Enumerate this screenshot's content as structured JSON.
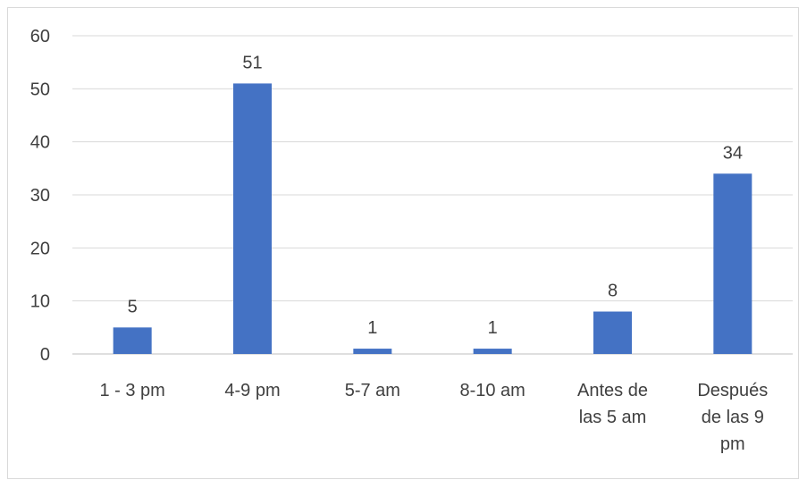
{
  "chart_data": {
    "type": "bar",
    "title": "",
    "xlabel": "",
    "ylabel": "",
    "ylim": [
      0,
      60
    ],
    "yticks": [
      0,
      10,
      20,
      30,
      40,
      50,
      60
    ],
    "grid": true,
    "legend": "none",
    "bar_color": "#4472C4",
    "categories": [
      [
        "1 - 3 pm"
      ],
      [
        "4-9 pm"
      ],
      [
        "5-7 am"
      ],
      [
        "8-10 am"
      ],
      [
        "Antes de",
        "las 5 am"
      ],
      [
        "Después",
        "de las 9",
        "pm"
      ]
    ],
    "values": [
      5,
      51,
      1,
      1,
      8,
      34
    ]
  }
}
